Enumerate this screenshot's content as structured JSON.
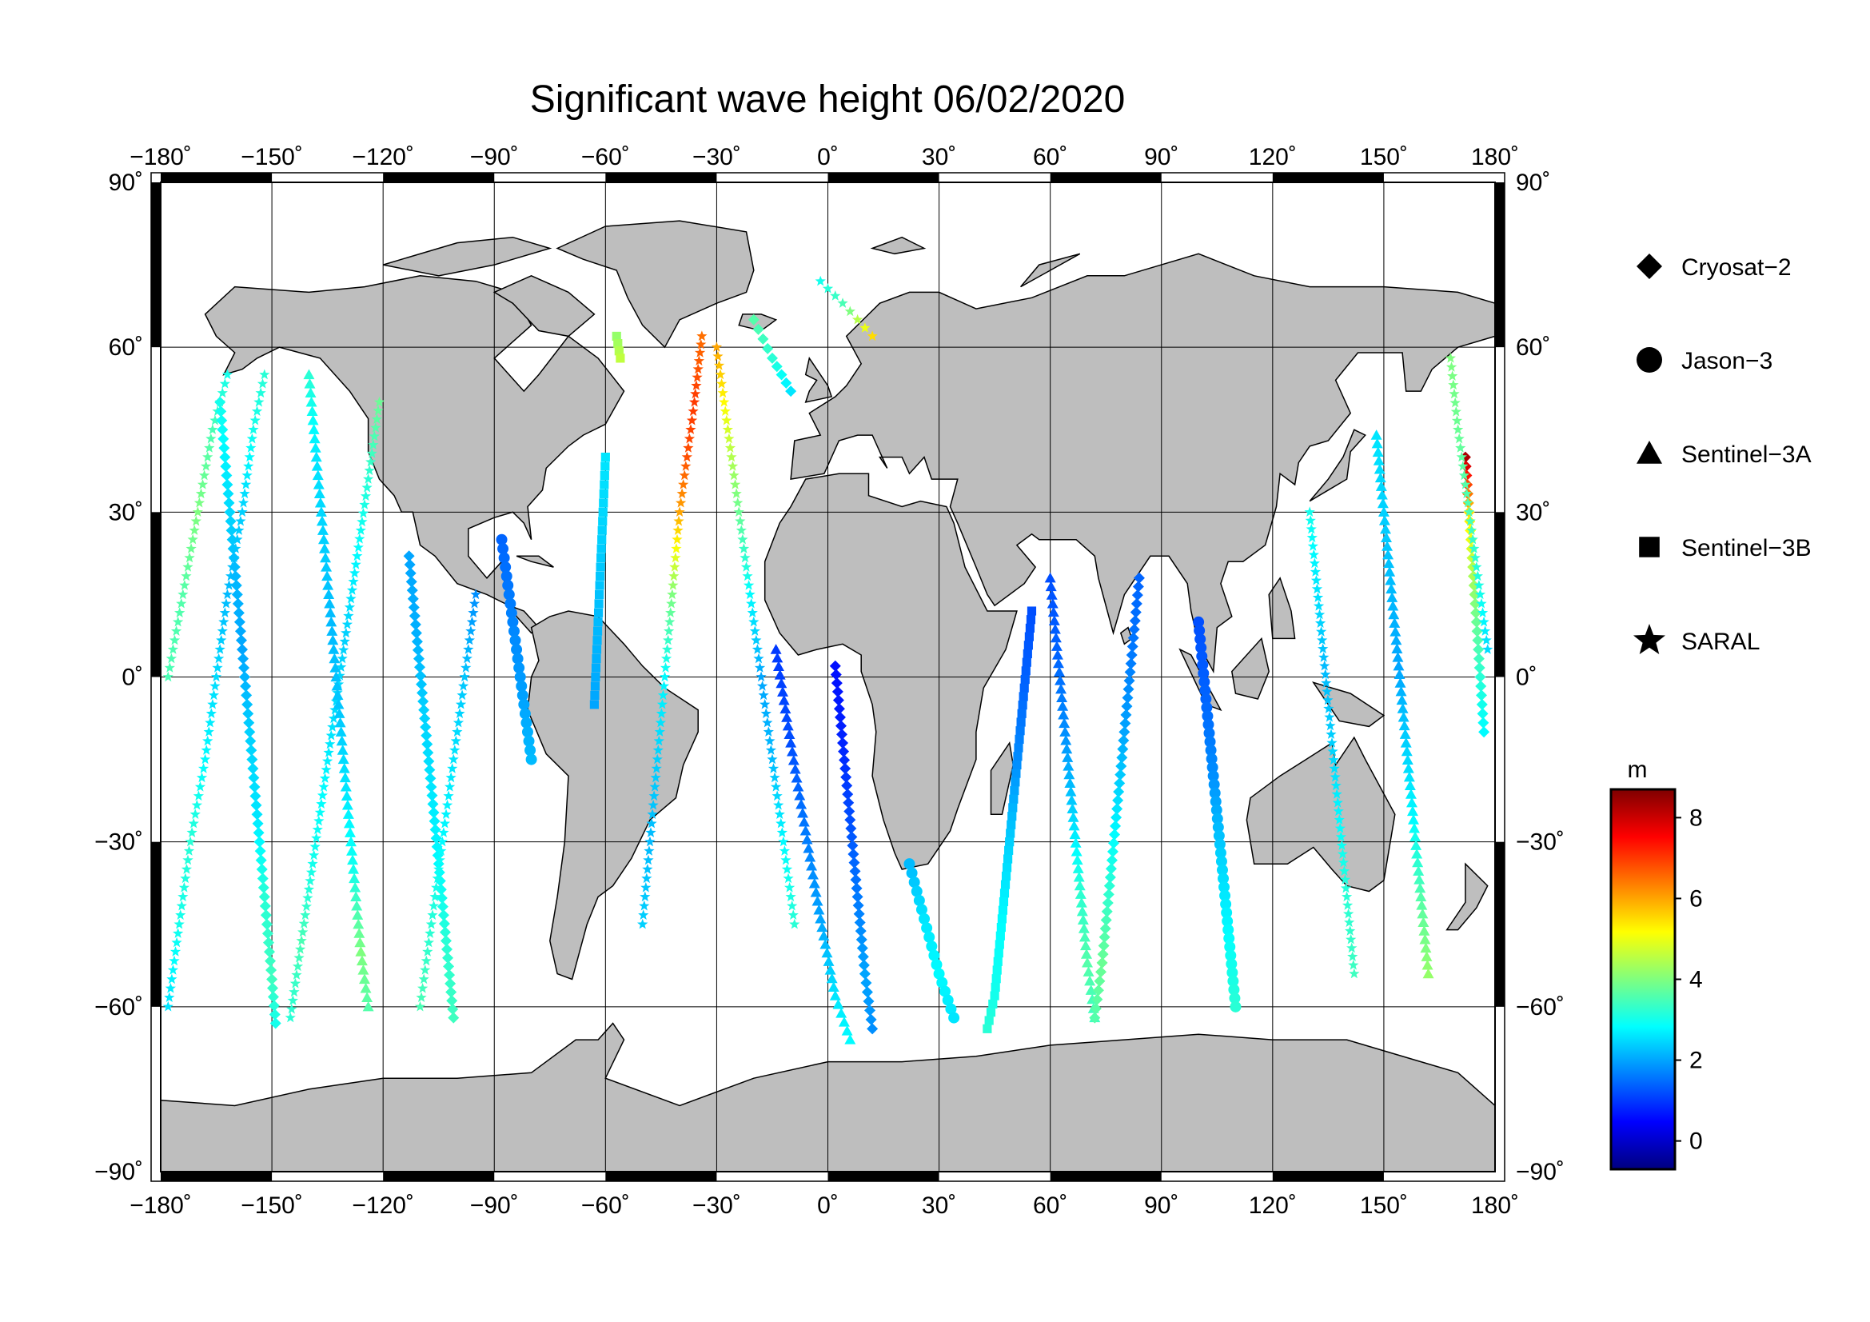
{
  "title": "Significant wave height 06/02/2020",
  "map": {
    "projection": "equirectangular",
    "lon_range": [
      -180,
      180
    ],
    "lat_range": [
      -90,
      90
    ],
    "lon_ticks": [
      -180,
      -150,
      -120,
      -90,
      -60,
      -30,
      0,
      30,
      60,
      90,
      120,
      150,
      180
    ],
    "lat_ticks": [
      90,
      60,
      30,
      0,
      -30,
      -60,
      -90
    ],
    "lon_tick_labels": [
      "−180˚",
      "−150˚",
      "−120˚",
      "−90˚",
      "−60˚",
      "−30˚",
      "0˚",
      "30˚",
      "60˚",
      "90˚",
      "120˚",
      "150˚",
      "180˚"
    ],
    "lat_tick_labels": [
      "90˚",
      "60˚",
      "30˚",
      "0˚",
      "−30˚",
      "−60˚",
      "−90˚"
    ],
    "land_color": "#bebebe",
    "ocean_color": "#ffffff",
    "grid": true
  },
  "legend": {
    "items": [
      {
        "label": "Cryosat−2",
        "marker": "diamond"
      },
      {
        "label": "Jason−3",
        "marker": "circle"
      },
      {
        "label": "Sentinel−3A",
        "marker": "triangle"
      },
      {
        "label": "Sentinel−3B",
        "marker": "square"
      },
      {
        "label": "SARAL",
        "marker": "star"
      }
    ]
  },
  "colorbar": {
    "unit": "m",
    "min": -0.7,
    "max": 8.7,
    "ticks": [
      0,
      2,
      4,
      6,
      8
    ],
    "tick_labels": [
      "0",
      "2",
      "4",
      "6",
      "8"
    ],
    "colormap": [
      "#00007f",
      "#0000ff",
      "#007fff",
      "#00ffff",
      "#7fff7f",
      "#ffff00",
      "#ff7f00",
      "#ff0000",
      "#7f0000"
    ]
  },
  "chart_data": {
    "type": "scatter",
    "description_of_variable": "significant wave height (m)",
    "tracks": [
      {
        "satellite": "SARAL",
        "marker": "star",
        "points": [
          [
            -178,
            -60,
            2.6
          ],
          [
            -175,
            -45,
            3
          ],
          [
            -172,
            -30,
            3.2
          ],
          [
            -168,
            -15,
            2.8
          ],
          [
            -165,
            0,
            2.5
          ],
          [
            -162,
            15,
            2.2
          ],
          [
            -158,
            30,
            2.4
          ],
          [
            -155,
            45,
            3
          ],
          [
            -152,
            55,
            3.2
          ]
        ]
      },
      {
        "satellite": "SARAL",
        "marker": "star",
        "points": [
          [
            -178,
            0,
            3.5
          ],
          [
            -174,
            15,
            3.6
          ],
          [
            -170,
            30,
            4
          ],
          [
            -166,
            45,
            3.5
          ],
          [
            -162,
            55,
            3
          ]
        ]
      },
      {
        "satellite": "Cryosat−2",
        "marker": "diamond",
        "points": [
          [
            -164,
            50,
            3
          ],
          [
            -162,
            35,
            2.6
          ],
          [
            -160,
            20,
            2.2
          ],
          [
            -158,
            5,
            2
          ],
          [
            -156,
            -10,
            2.4
          ],
          [
            -154,
            -25,
            2.6
          ],
          [
            -152,
            -40,
            3.2
          ],
          [
            -150,
            -55,
            3.4
          ],
          [
            -149,
            -63,
            3
          ]
        ]
      },
      {
        "satellite": "SARAL",
        "marker": "star",
        "points": [
          [
            -145,
            -62,
            3.2
          ],
          [
            -142,
            -48,
            3.5
          ],
          [
            -139,
            -34,
            3
          ],
          [
            -136,
            -20,
            2.8
          ],
          [
            -133,
            -6,
            2.5
          ],
          [
            -130,
            8,
            2.4
          ],
          [
            -127,
            22,
            2.8
          ],
          [
            -124,
            36,
            3.2
          ],
          [
            -121,
            50,
            3.8
          ]
        ]
      },
      {
        "satellite": "Sentinel−3A",
        "marker": "triangle",
        "points": [
          [
            -140,
            55,
            3.2
          ],
          [
            -138,
            40,
            2.6
          ],
          [
            -136,
            25,
            2.4
          ],
          [
            -134,
            10,
            2.2
          ],
          [
            -132,
            -5,
            2.3
          ],
          [
            -130,
            -20,
            2.6
          ],
          [
            -128,
            -35,
            3
          ],
          [
            -126,
            -50,
            4
          ],
          [
            -124,
            -60,
            3.6
          ]
        ]
      },
      {
        "satellite": "Cryosat−2",
        "marker": "diamond",
        "points": [
          [
            -113,
            22,
            2
          ],
          [
            -111,
            8,
            2.1
          ],
          [
            -109,
            -6,
            2.4
          ],
          [
            -107,
            -20,
            2.6
          ],
          [
            -105,
            -34,
            2.8
          ],
          [
            -103,
            -48,
            3.2
          ],
          [
            -101,
            -62,
            3.4
          ]
        ]
      },
      {
        "satellite": "SARAL",
        "marker": "star",
        "points": [
          [
            -110,
            -60,
            3.5
          ],
          [
            -107,
            -45,
            3.2
          ],
          [
            -104,
            -30,
            2.8
          ],
          [
            -101,
            -15,
            2.6
          ],
          [
            -98,
            0,
            2.3
          ],
          [
            -95,
            15,
            1.8
          ]
        ]
      },
      {
        "satellite": "Jason−3",
        "marker": "circle",
        "points": [
          [
            -88,
            25,
            1.4
          ],
          [
            -86,
            15,
            1.6
          ],
          [
            -84,
            5,
            1.8
          ],
          [
            -82,
            -5,
            2
          ],
          [
            -80,
            -15,
            2.2
          ]
        ]
      },
      {
        "satellite": "Sentinel−3B",
        "marker": "square",
        "points": [
          [
            -60,
            40,
            2.6
          ],
          [
            -61,
            25,
            2.4
          ],
          [
            -62,
            10,
            2.2
          ],
          [
            -63,
            -5,
            2
          ]
        ]
      },
      {
        "satellite": "SARAL",
        "marker": "star",
        "points": [
          [
            -34,
            62,
            6.5
          ],
          [
            -36,
            50,
            7
          ],
          [
            -38,
            40,
            6.8
          ],
          [
            -40,
            30,
            6
          ],
          [
            -42,
            15,
            4
          ],
          [
            -44,
            0,
            2.8
          ],
          [
            -46,
            -15,
            2.4
          ],
          [
            -48,
            -30,
            2.2
          ],
          [
            -50,
            -45,
            2.4
          ]
        ]
      },
      {
        "satellite": "SARAL",
        "marker": "star",
        "points": [
          [
            -30,
            60,
            6
          ],
          [
            -27,
            45,
            4.8
          ],
          [
            -24,
            30,
            3.8
          ],
          [
            -21,
            15,
            2.8
          ],
          [
            -18,
            0,
            2
          ],
          [
            -15,
            -15,
            2.2
          ],
          [
            -12,
            -30,
            2.8
          ],
          [
            -9,
            -45,
            3.2
          ]
        ]
      },
      {
        "satellite": "Cryosat−2",
        "marker": "diamond",
        "points": [
          [
            2,
            2,
            0.6
          ],
          [
            4,
            -12,
            0.8
          ],
          [
            6,
            -26,
            1.2
          ],
          [
            8,
            -40,
            1.6
          ],
          [
            10,
            -54,
            2
          ],
          [
            12,
            -64,
            1.8
          ]
        ]
      },
      {
        "satellite": "Sentinel−3A",
        "marker": "triangle",
        "points": [
          [
            -14,
            5,
            1
          ],
          [
            -10,
            -12,
            1.2
          ],
          [
            -6,
            -28,
            1.6
          ],
          [
            -2,
            -44,
            2
          ],
          [
            2,
            -58,
            2.6
          ],
          [
            6,
            -66,
            2.8
          ]
        ]
      },
      {
        "satellite": "Jason−3",
        "marker": "circle",
        "points": [
          [
            22,
            -34,
            2.2
          ],
          [
            26,
            -44,
            2.6
          ],
          [
            30,
            -54,
            2.8
          ],
          [
            34,
            -62,
            2.6
          ]
        ]
      },
      {
        "satellite": "Sentinel−3B",
        "marker": "square",
        "points": [
          [
            55,
            12,
            1.2
          ],
          [
            53,
            -2,
            1.4
          ],
          [
            51,
            -16,
            1.8
          ],
          [
            49,
            -30,
            2.4
          ],
          [
            47,
            -44,
            2.8
          ],
          [
            45,
            -58,
            3
          ],
          [
            43,
            -64,
            3.2
          ]
        ]
      },
      {
        "satellite": "Sentinel−3A",
        "marker": "triangle",
        "points": [
          [
            60,
            18,
            1.2
          ],
          [
            62,
            4,
            1.4
          ],
          [
            64,
            -10,
            1.8
          ],
          [
            66,
            -24,
            2.4
          ],
          [
            68,
            -38,
            3.2
          ],
          [
            70,
            -52,
            3.6
          ],
          [
            72,
            -62,
            3.4
          ]
        ]
      },
      {
        "satellite": "Cryosat−2",
        "marker": "diamond",
        "points": [
          [
            84,
            18,
            1.4
          ],
          [
            82,
            4,
            1.6
          ],
          [
            80,
            -10,
            2
          ],
          [
            78,
            -24,
            2.6
          ],
          [
            76,
            -38,
            3.2
          ],
          [
            74,
            -52,
            3.8
          ],
          [
            72,
            -62,
            3.6
          ]
        ]
      },
      {
        "satellite": "Jason−3",
        "marker": "circle",
        "points": [
          [
            100,
            10,
            1.2
          ],
          [
            102,
            -4,
            1.4
          ],
          [
            104,
            -18,
            1.8
          ],
          [
            106,
            -32,
            2.4
          ],
          [
            108,
            -46,
            2.8
          ],
          [
            110,
            -60,
            3.2
          ]
        ]
      },
      {
        "satellite": "SARAL",
        "marker": "star",
        "points": [
          [
            130,
            30,
            3
          ],
          [
            132,
            16,
            2.6
          ],
          [
            134,
            2,
            2.2
          ],
          [
            136,
            -12,
            2.4
          ],
          [
            138,
            -26,
            2.8
          ],
          [
            140,
            -40,
            3.2
          ],
          [
            142,
            -54,
            3.4
          ]
        ]
      },
      {
        "satellite": "Sentinel−3A",
        "marker": "triangle",
        "points": [
          [
            148,
            44,
            2.6
          ],
          [
            150,
            30,
            2.4
          ],
          [
            152,
            16,
            2.2
          ],
          [
            154,
            2,
            2
          ],
          [
            156,
            -12,
            2.4
          ],
          [
            158,
            -26,
            2.8
          ],
          [
            160,
            -40,
            3.6
          ],
          [
            162,
            -54,
            4.2
          ]
        ]
      },
      {
        "satellite": "Cryosat−2",
        "marker": "diamond",
        "points": [
          [
            172,
            40,
            8.3
          ],
          [
            173,
            30,
            5.5
          ],
          [
            174,
            20,
            4.5
          ],
          [
            175,
            10,
            3.8
          ],
          [
            176,
            0,
            3.2
          ],
          [
            177,
            -10,
            2.8
          ]
        ]
      },
      {
        "satellite": "SARAL",
        "marker": "star",
        "points": [
          [
            168,
            58,
            4
          ],
          [
            170,
            45,
            3.8
          ],
          [
            173,
            30,
            3.5
          ],
          [
            176,
            15,
            3
          ],
          [
            178,
            5,
            2.5
          ]
        ]
      },
      {
        "satellite": "SARAL",
        "marker": "star",
        "points": [
          [
            -2,
            72,
            3
          ],
          [
            4,
            68,
            3.5
          ],
          [
            8,
            65,
            4.5
          ],
          [
            12,
            62,
            5.5
          ]
        ]
      },
      {
        "satellite": "Cryosat−2",
        "marker": "diamond",
        "points": [
          [
            -20,
            65,
            3.6
          ],
          [
            -15,
            58,
            3.2
          ],
          [
            -10,
            52,
            2.6
          ]
        ]
      },
      {
        "satellite": "Sentinel−3B",
        "marker": "square",
        "points": [
          [
            -57,
            62,
            4.2
          ],
          [
            -56,
            58,
            4.6
          ]
        ]
      }
    ]
  }
}
